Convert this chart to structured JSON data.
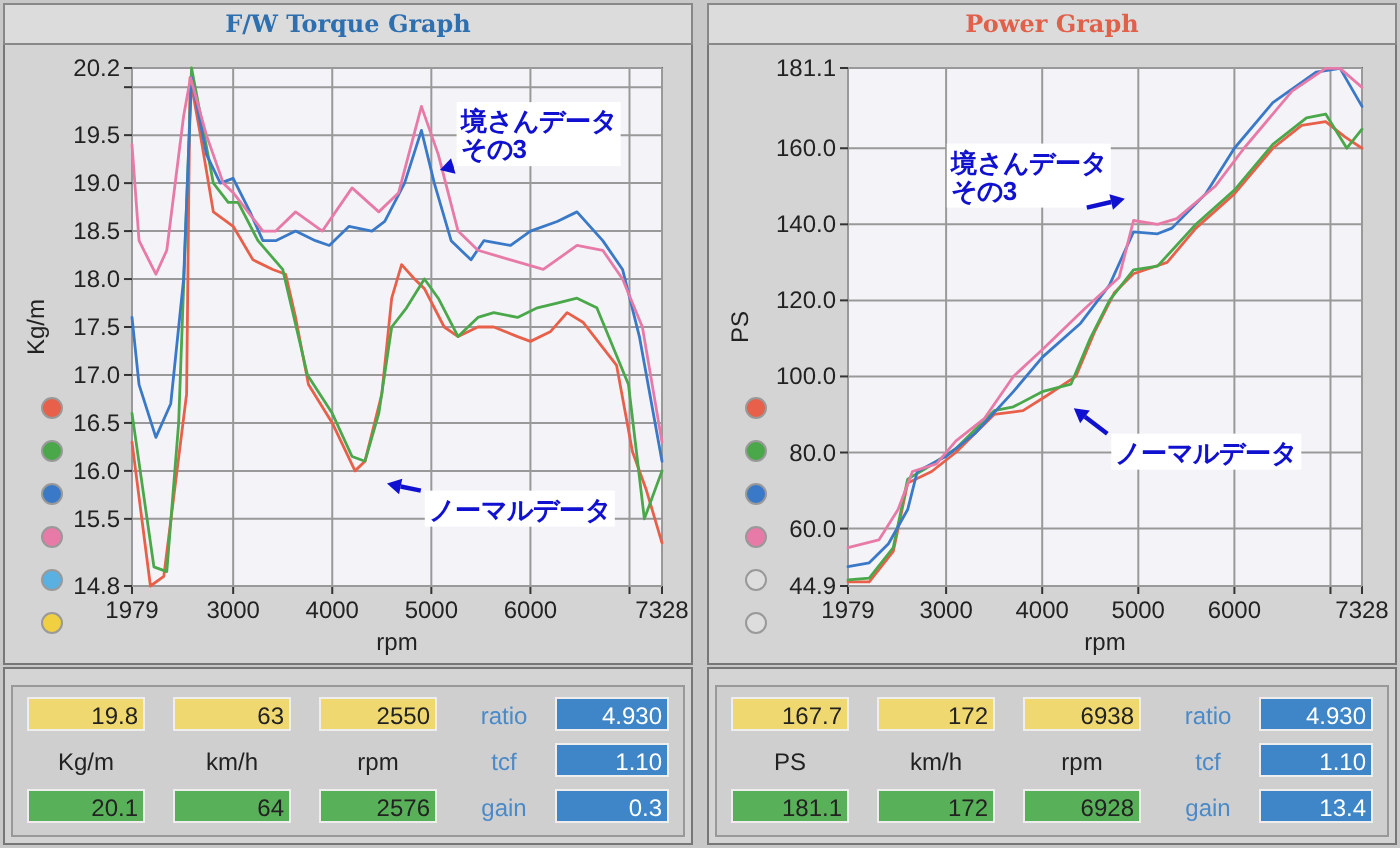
{
  "chart_data": [
    {
      "type": "line",
      "title": "F/W Torque Graph",
      "xlabel": "rpm",
      "ylabel": "Kg/m",
      "grid": true,
      "xlim": [
        1979,
        7328
      ],
      "xticks": [
        1979,
        3000,
        4000,
        5000,
        6000,
        {
          "value": 7000,
          "label": null
        },
        7328
      ],
      "ylim": [
        14.8,
        20.2
      ],
      "yticks": [
        {
          "value": 14.8,
          "label": "14.8"
        },
        {
          "value": 15.5,
          "label": "15.5"
        },
        {
          "value": 16,
          "label": "16.0"
        },
        {
          "value": 16.5,
          "label": "16.5"
        },
        {
          "value": 17,
          "label": "17.0"
        },
        {
          "value": 17.5,
          "label": "17.5"
        },
        {
          "value": 18,
          "label": "18.0"
        },
        {
          "value": 18.5,
          "label": "18.5"
        },
        {
          "value": 19,
          "label": "19.0"
        },
        {
          "value": 19.5,
          "label": "19.5"
        },
        {
          "value": 20,
          "label": null
        },
        {
          "value": 20.2,
          "label": "20.2"
        }
      ],
      "series": [
        {
          "color": "#e8604a",
          "x": [
            1979,
            2165,
            2300,
            2530,
            2565,
            2670,
            2800,
            3000,
            3200,
            3400,
            3530,
            3630,
            3760,
            4000,
            4230,
            4330,
            4500,
            4600,
            4700,
            4830,
            4930,
            5130,
            5270,
            5470,
            5630,
            5870,
            6000,
            6200,
            6370,
            6530,
            6870,
            7030,
            7170,
            7328
          ],
          "values": [
            16.3,
            14.8,
            14.9,
            16.8,
            20.1,
            19.5,
            18.7,
            18.55,
            18.2,
            18.1,
            18.05,
            17.6,
            16.9,
            16.5,
            16.0,
            16.1,
            16.8,
            17.8,
            18.15,
            18.0,
            17.9,
            17.5,
            17.4,
            17.5,
            17.5,
            17.4,
            17.35,
            17.45,
            17.65,
            17.55,
            17.1,
            16.2,
            15.8,
            15.25
          ]
        },
        {
          "color": "#4aa84a",
          "x": [
            1979,
            2200,
            2330,
            2450,
            2580,
            2800,
            2950,
            3050,
            3250,
            3500,
            3750,
            4000,
            4200,
            4330,
            4470,
            4600,
            4750,
            4930,
            5070,
            5270,
            5470,
            5630,
            5870,
            6070,
            6270,
            6470,
            6670,
            6990,
            7150,
            7328
          ],
          "values": [
            16.6,
            15.0,
            14.95,
            16.5,
            20.2,
            19.0,
            18.8,
            18.8,
            18.4,
            18.1,
            17.0,
            16.6,
            16.15,
            16.1,
            16.6,
            17.5,
            17.7,
            18.0,
            17.8,
            17.4,
            17.6,
            17.65,
            17.6,
            17.7,
            17.75,
            17.8,
            17.7,
            16.9,
            15.5,
            16.0
          ]
        },
        {
          "color": "#3a78c8",
          "x": [
            1979,
            2050,
            2220,
            2370,
            2500,
            2580,
            2730,
            2870,
            3000,
            3170,
            3300,
            3430,
            3630,
            3830,
            3970,
            4170,
            4400,
            4530,
            4730,
            4900,
            5030,
            5200,
            5400,
            5530,
            5800,
            6000,
            6270,
            6470,
            6730,
            6930,
            7100,
            7328
          ],
          "values": [
            17.6,
            16.9,
            16.35,
            16.7,
            18.0,
            20.1,
            19.3,
            19.0,
            19.05,
            18.7,
            18.4,
            18.4,
            18.5,
            18.4,
            18.35,
            18.55,
            18.5,
            18.6,
            19.0,
            19.55,
            19.0,
            18.4,
            18.2,
            18.4,
            18.35,
            18.5,
            18.6,
            18.7,
            18.4,
            18.1,
            17.4,
            16.1
          ]
        },
        {
          "color": "#e87aa8",
          "x": [
            1979,
            2050,
            2220,
            2330,
            2500,
            2570,
            2730,
            2900,
            3000,
            3300,
            3430,
            3630,
            3900,
            4200,
            4470,
            4670,
            4900,
            5070,
            5270,
            5470,
            5800,
            6130,
            6470,
            6730,
            6930,
            7130,
            7328
          ],
          "values": [
            19.4,
            18.4,
            18.05,
            18.3,
            19.7,
            20.1,
            19.5,
            19.0,
            18.9,
            18.5,
            18.5,
            18.7,
            18.5,
            18.95,
            18.7,
            18.9,
            19.8,
            19.3,
            18.5,
            18.3,
            18.2,
            18.1,
            18.35,
            18.3,
            18.0,
            17.5,
            16.3
          ]
        }
      ],
      "annotations": [
        "境さんデータその3",
        "ノーマルデータ"
      ]
    },
    {
      "type": "line",
      "title": "Power Graph",
      "xlabel": "rpm",
      "ylabel": "PS",
      "grid": true,
      "xlim": [
        1979,
        7328
      ],
      "xticks": [
        1979,
        3000,
        4000,
        5000,
        6000,
        {
          "value": 7000,
          "label": null
        },
        7328
      ],
      "ylim": [
        44.9,
        181.1
      ],
      "yticks": [
        44.9,
        {
          "value": 60,
          "label": "60.0"
        },
        {
          "value": 80,
          "label": "80.0"
        },
        {
          "value": 100,
          "label": "100.0"
        },
        {
          "value": 120,
          "label": "120.0"
        },
        {
          "value": 140,
          "label": "140.0"
        },
        {
          "value": 160,
          "label": "160.0"
        },
        181.1
      ],
      "series": [
        {
          "color": "#e8604a",
          "x": [
            1979,
            2200,
            2450,
            2600,
            2850,
            3100,
            3500,
            3800,
            4050,
            4350,
            4550,
            4750,
            4950,
            5300,
            5600,
            6000,
            6400,
            6700,
            6950,
            7150,
            7328
          ],
          "values": [
            46,
            46,
            54,
            72,
            75,
            80,
            90,
            91,
            95,
            100,
            112,
            122,
            127,
            130,
            139,
            148,
            160,
            166,
            167,
            163,
            160
          ]
        },
        {
          "color": "#4aa84a",
          "x": [
            1979,
            2200,
            2450,
            2600,
            2800,
            3100,
            3500,
            3700,
            4000,
            4300,
            4500,
            4700,
            4950,
            5200,
            5600,
            6000,
            6400,
            6750,
            6950,
            7170,
            7328
          ],
          "values": [
            46.5,
            47,
            55,
            73,
            76,
            81,
            91,
            92,
            96,
            98,
            110,
            120,
            128,
            129,
            140,
            149,
            161,
            168,
            169,
            160,
            165
          ]
        },
        {
          "color": "#3a78c8",
          "x": [
            1979,
            2200,
            2400,
            2600,
            2700,
            3000,
            3300,
            3700,
            4000,
            4400,
            4700,
            4950,
            5200,
            5350,
            5700,
            6000,
            6400,
            6850,
            7100,
            7328
          ],
          "values": [
            50,
            51,
            56,
            65,
            75,
            79,
            85,
            96,
            105,
            114,
            124,
            138,
            137.5,
            139,
            148,
            160,
            172,
            180,
            181,
            171
          ]
        },
        {
          "color": "#e87aa8",
          "x": [
            1979,
            2300,
            2500,
            2650,
            2900,
            3100,
            3400,
            3700,
            4000,
            4450,
            4800,
            4950,
            5200,
            5400,
            5800,
            6100,
            6600,
            6950,
            7100,
            7328
          ],
          "values": [
            55,
            57,
            65,
            75,
            77,
            83,
            89,
            100,
            107,
            118,
            126,
            141,
            140,
            141.5,
            150,
            160,
            175,
            181,
            181,
            176
          ]
        }
      ],
      "annotations": [
        "境さんデータその3",
        "ノーマルデータ"
      ]
    },
    {
      "type": "other",
      "annotations": [
        "19.8",
        "63",
        "2550",
        "ratio",
        "4.930",
        "Kg/m",
        "km/h",
        "rpm",
        "tcf",
        "1.10",
        "20.1",
        "64",
        "2576",
        "gain",
        "0.3"
      ]
    },
    {
      "type": "other",
      "annotations": [
        "167.7",
        "172",
        "6938",
        "ratio",
        "4.930",
        "PS",
        "km/h",
        "rpm",
        "tcf",
        "1.10",
        "181.1",
        "172",
        "6928",
        "gain",
        "13.4"
      ]
    }
  ]
}
